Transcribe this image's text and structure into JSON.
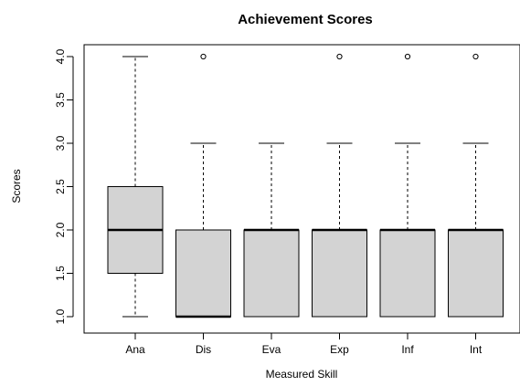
{
  "chart_data": {
    "type": "boxplot",
    "title": "Achievement Scores",
    "xlabel": "Measured Skill",
    "ylabel": "Scores",
    "ylim": [
      1.0,
      4.0
    ],
    "yticks": [
      "1.0",
      "1.5",
      "2.0",
      "2.5",
      "3.0",
      "3.5",
      "4.0"
    ],
    "grid": false,
    "legend": "none",
    "box_color": "#d3d3d3",
    "categories": [
      "Ana",
      "Dis",
      "Eva",
      "Exp",
      "Inf",
      "Int"
    ],
    "boxes": [
      {
        "category": "Ana",
        "whisker_low": 1.0,
        "q1": 1.5,
        "median": 2.0,
        "q3": 2.5,
        "whisker_high": 4.0,
        "outliers": []
      },
      {
        "category": "Dis",
        "whisker_low": 1.0,
        "q1": 1.0,
        "median": 1.0,
        "q3": 2.0,
        "whisker_high": 3.0,
        "outliers": [
          4.0
        ]
      },
      {
        "category": "Eva",
        "whisker_low": 1.0,
        "q1": 1.0,
        "median": 2.0,
        "q3": 2.0,
        "whisker_high": 3.0,
        "outliers": []
      },
      {
        "category": "Exp",
        "whisker_low": 1.0,
        "q1": 1.0,
        "median": 2.0,
        "q3": 2.0,
        "whisker_high": 3.0,
        "outliers": [
          4.0
        ]
      },
      {
        "category": "Inf",
        "whisker_low": 1.0,
        "q1": 1.0,
        "median": 2.0,
        "q3": 2.0,
        "whisker_high": 3.0,
        "outliers": [
          4.0
        ]
      },
      {
        "category": "Int",
        "whisker_low": 1.0,
        "q1": 1.0,
        "median": 2.0,
        "q3": 2.0,
        "whisker_high": 3.0,
        "outliers": [
          4.0
        ]
      }
    ]
  }
}
